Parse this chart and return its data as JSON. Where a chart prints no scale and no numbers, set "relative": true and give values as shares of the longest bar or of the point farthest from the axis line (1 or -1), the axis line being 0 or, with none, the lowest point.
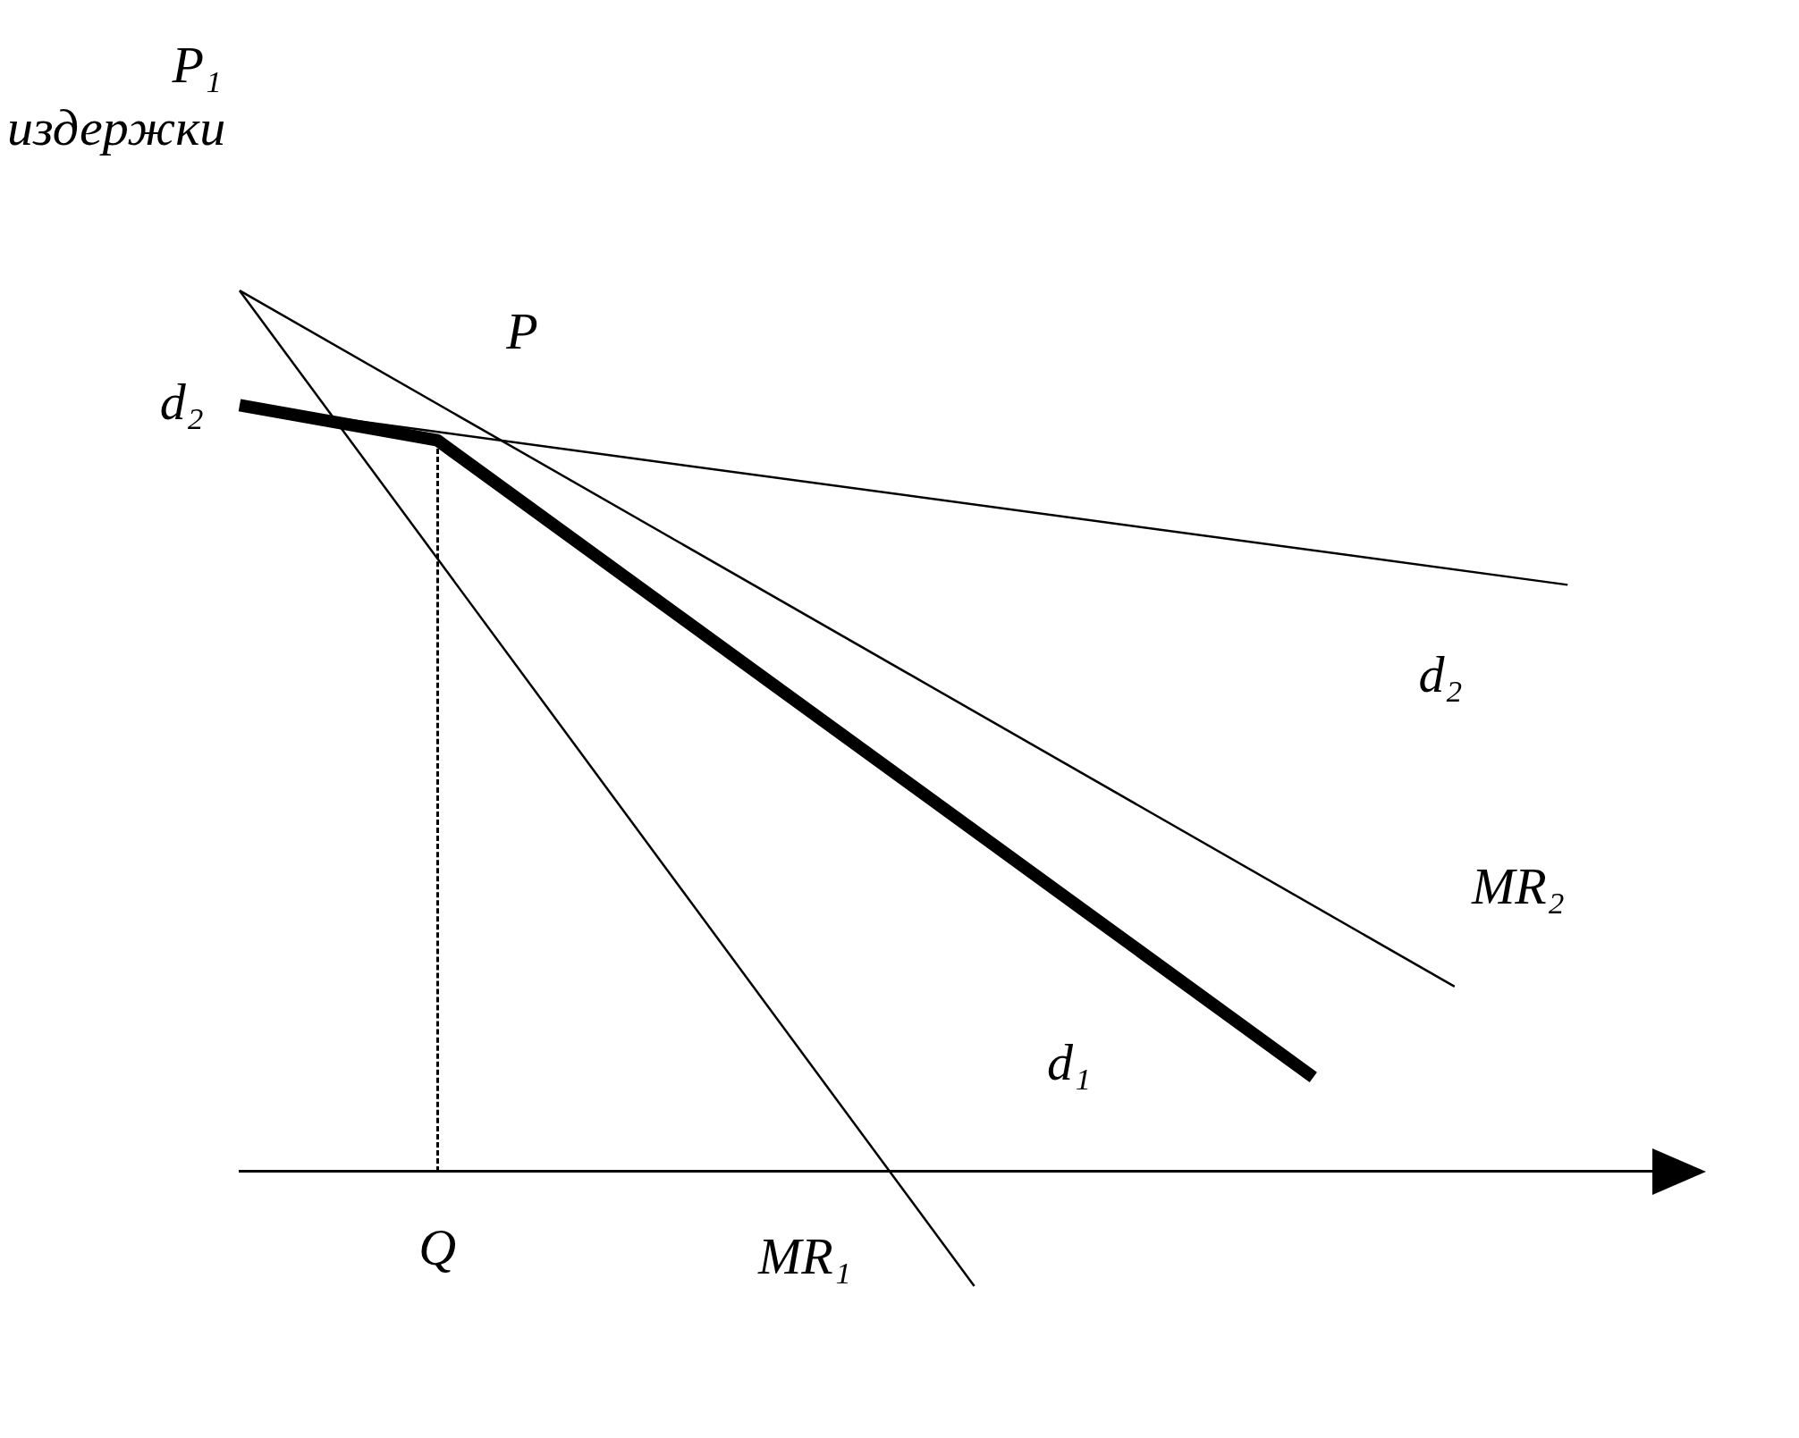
{
  "chart_data": {
    "type": "line",
    "relative": true,
    "ylabel": "P₁ издержки",
    "grid": false,
    "legend": false,
    "categories": [
      null,
      null,
      null,
      null,
      null,
      null,
      null,
      null,
      null,
      null,
      null,
      null,
      null,
      null,
      null,
      null,
      null,
      null,
      null,
      null,
      null,
      null,
      null,
      null,
      null,
      null,
      null,
      null,
      null,
      null,
      null,
      null,
      null,
      null,
      null,
      null,
      null,
      null,
      null,
      null,
      null,
      null,
      null,
      null,
      null,
      null,
      null,
      null,
      null,
      null,
      null
    ],
    "series": [
      {
        "color": "#000000",
        "values": [
          0.87,
          null,
          null,
          null,
          null,
          null,
          null,
          0.83,
          null,
          null,
          null,
          null,
          null,
          null,
          null,
          null,
          null,
          null,
          null,
          null,
          null,
          null,
          null,
          null,
          null,
          null,
          null,
          null,
          null,
          null,
          null,
          null,
          null,
          null,
          null,
          null,
          null,
          null,
          0.107,
          null,
          null,
          null,
          null,
          null,
          null,
          null,
          null,
          null,
          null,
          null,
          null
        ]
      },
      {
        "color": "#000000",
        "values": [
          0.87,
          null,
          null,
          null,
          null,
          null,
          null,
          null,
          null,
          null,
          null,
          null,
          null,
          null,
          null,
          null,
          null,
          null,
          null,
          null,
          null,
          null,
          null,
          null,
          null,
          null,
          null,
          null,
          null,
          null,
          null,
          null,
          null,
          null,
          null,
          null,
          null,
          null,
          null,
          null,
          null,
          null,
          null,
          null,
          null,
          null,
          null,
          0.666,
          null,
          null,
          null
        ]
      },
      {
        "color": "#000000",
        "values": [
          1,
          null,
          null,
          null,
          null,
          null,
          null,
          null,
          null,
          null,
          null,
          null,
          null,
          null,
          null,
          null,
          null,
          null,
          null,
          null,
          null,
          null,
          null,
          null,
          null,
          null,
          null,
          null,
          null,
          null,
          null,
          null,
          null,
          null,
          null,
          null,
          null,
          null,
          null,
          null,
          null,
          null,
          null,
          0.21,
          null,
          null,
          null,
          null,
          null,
          null,
          null
        ]
      },
      {
        "color": "#000000",
        "values": [
          1,
          null,
          null,
          null,
          null,
          null,
          null,
          null,
          null,
          null,
          null,
          null,
          null,
          null,
          null,
          null,
          null,
          null,
          null,
          null,
          null,
          null,
          null,
          null,
          null,
          null,
          -0.13,
          null,
          null,
          null,
          null,
          null,
          null,
          null,
          null,
          null,
          null,
          null,
          null,
          null,
          null,
          null,
          null,
          null,
          null,
          null,
          null,
          null,
          null,
          null,
          null
        ]
      }
    ],
    "annotations": [
      "d₂",
      "P",
      "d₂",
      "MR₂",
      "d₁",
      "Q",
      "MR₁"
    ]
  }
}
